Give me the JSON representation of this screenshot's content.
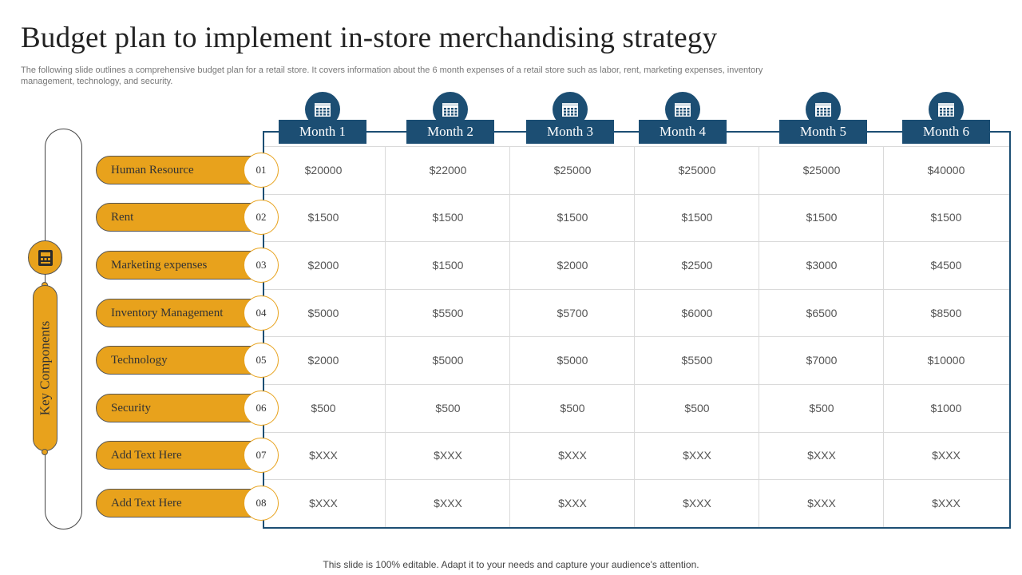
{
  "title": "Budget plan to implement in-store merchandising strategy",
  "subtitle": "The following slide outlines a comprehensive budget plan for a retail store. It covers information about the 6 month expenses of a retail store such as labor, rent, marketing expenses, inventory management, technology, and security.",
  "key_label": "Key Components",
  "months": [
    "Month 1",
    "Month 2",
    "Month 3",
    "Month 4",
    "Month 5",
    "Month 6"
  ],
  "rows": [
    {
      "num": "01",
      "label": "Human  Resource",
      "values": [
        "$20000",
        "$22000",
        "$25000",
        "$25000",
        "$25000",
        "$40000"
      ]
    },
    {
      "num": "02",
      "label": "Rent",
      "values": [
        "$1500",
        "$1500",
        "$1500",
        "$1500",
        "$1500",
        "$1500"
      ]
    },
    {
      "num": "03",
      "label": "Marketing  expenses",
      "values": [
        "$2000",
        "$1500",
        "$2000",
        "$2500",
        "$3000",
        "$4500"
      ]
    },
    {
      "num": "04",
      "label": "Inventory  Management",
      "values": [
        "$5000",
        "$5500",
        "$5700",
        "$6000",
        "$6500",
        "$8500"
      ]
    },
    {
      "num": "05",
      "label": "Technology",
      "values": [
        "$2000",
        "$5000",
        "$5000",
        "$5500",
        "$7000",
        "$10000"
      ]
    },
    {
      "num": "06",
      "label": "Security",
      "values": [
        "$500",
        "$500",
        "$500",
        "$500",
        "$500",
        "$1000"
      ]
    },
    {
      "num": "07",
      "label": "Add Text  Here",
      "values": [
        "$XXX",
        "$XXX",
        "$XXX",
        "$XXX",
        "$XXX",
        "$XXX"
      ]
    },
    {
      "num": "08",
      "label": "Add Text  Here",
      "values": [
        "$XXX",
        "$XXX",
        "$XXX",
        "$XXX",
        "$XXX",
        "$XXX"
      ]
    }
  ],
  "footer": "This slide is 100% editable. Adapt it to your needs and capture your audience's attention.",
  "colors": {
    "accent": "#e8a21c",
    "header": "#1c4e73"
  },
  "icons": {
    "key": "cash-register-icon",
    "month": "calendar-icon"
  }
}
